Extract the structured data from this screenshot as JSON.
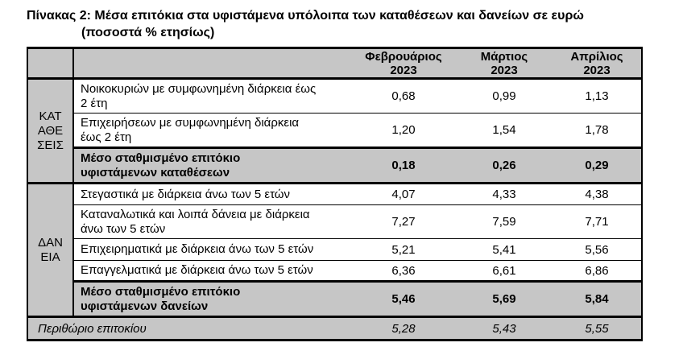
{
  "title": {
    "line1": "Πίνακας 2: Μέσα επιτόκια στα υφιστάμενα υπόλοιπα των καταθέσεων και δανείων σε ευρώ",
    "line2": "(ποσοστά % ετησίως)"
  },
  "table": {
    "column_headers": [
      "Φεβρουάριος\n2023",
      "Μάρτιος\n2023",
      "Απρίλιος\n2023"
    ],
    "groups": [
      {
        "label": "ΚΑΤ\nΑΘΕ\nΣΕΙΣ",
        "rows": [
          {
            "label": "Νοικοκυριών με συμφωνημένη διάρκεια έως\n2 έτη",
            "values": [
              "0,68",
              "0,99",
              "1,13"
            ]
          },
          {
            "label": "Επιχειρήσεων με συμφωνημένη διάρκεια\nέως 2 έτη",
            "values": [
              "1,20",
              "1,54",
              "1,78"
            ]
          },
          {
            "label": "Μέσο σταθμισμένο επιτόκιο\nυφιστάμενων καταθέσεων",
            "values": [
              "0,18",
              "0,26",
              "0,29"
            ],
            "summary": true
          }
        ]
      },
      {
        "label": "ΔΑΝ\nΕΙΑ",
        "rows": [
          {
            "label": "Στεγαστικά με διάρκεια άνω των 5 ετών",
            "values": [
              "4,07",
              "4,33",
              "4,38"
            ]
          },
          {
            "label": "Καταναλωτικά και λοιπά δάνεια με διάρκεια\nάνω των 5 ετών",
            "values": [
              "7,27",
              "7,59",
              "7,71"
            ]
          },
          {
            "label": "Επιχειρηματικά με διάρκεια άνω των 5 ετών",
            "values": [
              "5,21",
              "5,41",
              "5,56"
            ]
          },
          {
            "label": "Επαγγελματικά με διάρκεια άνω των 5 ετών",
            "values": [
              "6,36",
              "6,61",
              "6,86"
            ]
          },
          {
            "label": "Μέσο σταθμισμένο επιτόκιο\nυφιστάμενων δανείων",
            "values": [
              "5,46",
              "5,69",
              "5,84"
            ],
            "summary": true
          }
        ]
      }
    ],
    "footer": {
      "label": "Περιθώριο επιτοκίου",
      "values": [
        "5,28",
        "5,43",
        "5,55"
      ]
    }
  },
  "colors": {
    "shaded_background": "#c6c6c6",
    "border": "#000000",
    "page_background": "#ffffff",
    "text": "#000000"
  }
}
